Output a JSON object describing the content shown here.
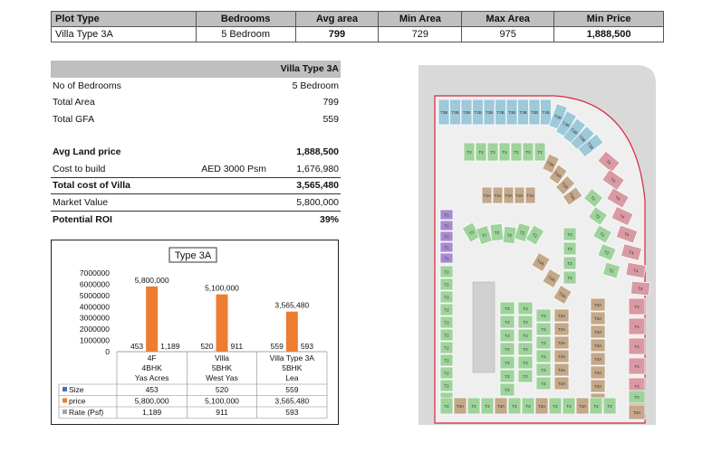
{
  "summary": {
    "headers": [
      "Plot Type",
      "Bedrooms",
      "Avg area",
      "Min Area",
      "Max Area",
      "Min Price"
    ],
    "row": [
      "Villa Type 3A",
      "5 Bedroom",
      "799",
      "729",
      "975",
      "1,888,500"
    ]
  },
  "calc": {
    "header": "Villa Type 3A",
    "rows": [
      {
        "label": "No of Bedrooms",
        "mid": "",
        "value": "5 Bedroom"
      },
      {
        "label": "Total Area",
        "mid": "",
        "value": "799"
      },
      {
        "label": "Total GFA",
        "mid": "",
        "value": "559"
      },
      {
        "label": "Avg Land price",
        "mid": "",
        "value": "1,888,500"
      },
      {
        "label": "Cost to build",
        "mid": "AED 3000 Psm",
        "value": "1,676,980"
      },
      {
        "label": "Total cost of Villa",
        "mid": "",
        "value": "3,565,480"
      },
      {
        "label": "Market Value",
        "mid": "",
        "value": "5,800,000"
      },
      {
        "label": "Potential ROI",
        "mid": "",
        "value": "39%"
      }
    ]
  },
  "chart_data": {
    "type": "bar",
    "title": "Type 3A",
    "categories": [
      [
        "4F",
        "4BHK",
        "Yas Acres"
      ],
      [
        "Villa",
        "5BHK",
        "West Yas"
      ],
      [
        "Villa Type 3A",
        "5BHK",
        "Lea"
      ]
    ],
    "ylim": [
      0,
      7000000
    ],
    "yticks": [
      "0",
      "1000000",
      "2000000",
      "3000000",
      "4000000",
      "5000000",
      "6000000",
      "7000000"
    ],
    "series": [
      {
        "name": "Size",
        "values": [
          453,
          520,
          559
        ],
        "labels": [
          "453",
          "520",
          "559"
        ],
        "color": "#4472c4"
      },
      {
        "name": "price",
        "values": [
          5800000,
          5100000,
          3565480
        ],
        "labels": [
          "5,800,000",
          "5,100,000",
          "3,565,480"
        ],
        "color": "#ed7d31"
      },
      {
        "name": "Rate (Psf)",
        "values": [
          1189,
          911,
          593
        ],
        "labels": [
          "1,189",
          "911",
          "593"
        ],
        "color": "#a5a5a5"
      }
    ]
  },
  "map": {
    "colors": {
      "blue": "#9dc9d9",
      "green": "#9fd39c",
      "tan": "#c4a88a",
      "pink": "#d99aa3",
      "purple": "#a98bd0",
      "road": "#d9d9d9",
      "boundary": "#d7263d"
    },
    "labels": {
      "blue": "T3B",
      "green": "T2",
      "tan": "T3A",
      "pink": "T4",
      "purple": "T1"
    }
  }
}
